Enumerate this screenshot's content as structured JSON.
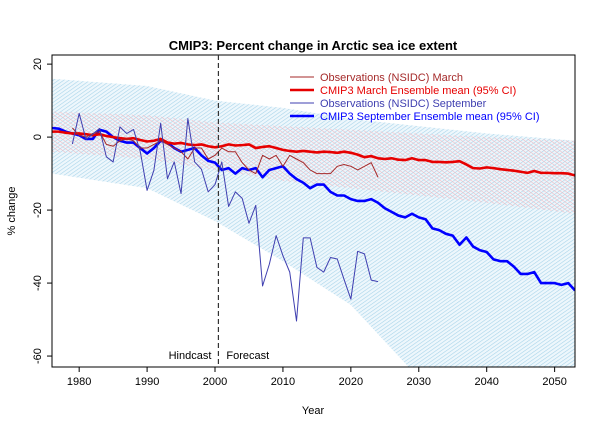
{
  "chart_data": {
    "type": "line",
    "title": "CMIP3: Percent change in Arctic sea ice extent",
    "xlabel": "Year",
    "ylabel": "% change",
    "xlim": [
      1976,
      2053
    ],
    "ylim": [
      -63,
      22.5
    ],
    "grid": false,
    "legend_placement": "top-right",
    "x_ticks": [
      1980,
      1990,
      2000,
      2010,
      2020,
      2030,
      2040,
      2050
    ],
    "y_ticks": [
      20,
      0,
      -20,
      -40,
      -60
    ],
    "annotations": {
      "divider_year": 2000.5,
      "left": "Hindcast",
      "right": "Forecast"
    },
    "colors": {
      "march_obs": "#a52a2a",
      "march_mean": "#e60000",
      "sept_obs": "#3f3fb0",
      "sept_mean": "#0000ff",
      "march_band": "#f3b8c0",
      "sept_band": "#a8d4ea"
    },
    "series": [
      {
        "name": "Observations (NSIDC) March",
        "start_year": 1979,
        "values": [
          2.5,
          0.5,
          0,
          1,
          1.5,
          -2,
          -2.5,
          -1,
          -0.5,
          -1,
          -3,
          -3,
          -2,
          -1,
          -2,
          -3,
          -4,
          -6,
          -3,
          -3,
          -6,
          -5,
          -3,
          -4,
          -4,
          -7,
          -9,
          -10,
          -5,
          -6,
          -5,
          -8,
          -5,
          -6,
          -7,
          -9,
          -10,
          -10,
          -10,
          -8,
          -7.5,
          -8,
          -9,
          -8,
          -7,
          -11
        ]
      },
      {
        "name": "CMIP3 March Ensemble mean (95% CI)",
        "start_year": 1976,
        "values": [
          1.5,
          1.5,
          1.2,
          1.0,
          1.0,
          0.8,
          0.5,
          0.8,
          0.3,
          0.0,
          -0.3,
          -0.5,
          -0.3,
          -0.8,
          -1.2,
          -1.0,
          -0.5,
          -1.5,
          -1.8,
          -1.6,
          -2.0,
          -2.2,
          -2.0,
          -2.5,
          -2.8,
          -2.5,
          -2.0,
          -2.3,
          -2.2,
          -2.0,
          -3.0,
          -2.7,
          -2.5,
          -3.0,
          -3.5,
          -3.8,
          -4.0,
          -3.8,
          -4.0,
          -4.2,
          -4.0,
          -4.1,
          -4.3,
          -4.0,
          -4.3,
          -4.8,
          -5.5,
          -5.2,
          -5.8,
          -6.0,
          -5.8,
          -6.2,
          -6.3,
          -5.8,
          -6.3,
          -6.3,
          -6.8,
          -6.8,
          -6.9,
          -6.8,
          -6.6,
          -7.5,
          -8.5,
          -8.6,
          -8.3,
          -8.5,
          -8.8,
          -9.0,
          -9.2,
          -9.5,
          -9.8,
          -9.3,
          -9.8,
          -9.8,
          -9.9,
          -9.9,
          -10.0,
          -10.5
        ],
        "ci_years": [
          1976,
          1990,
          2000,
          2010,
          2020,
          2030,
          2040,
          2053
        ],
        "ci_upper": [
          7,
          6,
          4,
          3,
          2,
          1,
          0,
          -1
        ],
        "ci_lower": [
          -4,
          -6,
          -9,
          -12,
          -14,
          -16,
          -18,
          -21
        ]
      },
      {
        "name": "Observations (NSIDC) September",
        "start_year": 1979,
        "values": [
          -1.9,
          6.5,
          -0.6,
          0.8,
          2.4,
          -5.4,
          -6.8,
          2.8,
          1,
          2.1,
          -4,
          -14.6,
          -9.1,
          3.8,
          -11.4,
          -6.8,
          -15.5,
          5.1,
          -6.8,
          -8.8,
          -15,
          -13,
          -6.8,
          -19,
          -15,
          -16.8,
          -23.6,
          -18.7,
          -40.8,
          -34.8,
          -27,
          -32.5,
          -37,
          -50.4,
          -27.6,
          -27.6,
          -35.7,
          -37,
          -33,
          -33.4,
          -39,
          -44.4,
          -31.3,
          -32,
          -39.2,
          -39.6
        ]
      },
      {
        "name": "CMIP3 September Ensemble mean (95% CI)",
        "start_year": 1976,
        "values": [
          2.5,
          2.3,
          1.5,
          1.0,
          0.5,
          -0.5,
          -0.5,
          2.0,
          1.5,
          0.0,
          -1.0,
          -1.5,
          -1.5,
          -3.0,
          -4.5,
          -3.0,
          -1.0,
          -1.5,
          -3.0,
          -4.0,
          -3.5,
          -3.0,
          -5.0,
          -6.5,
          -7.0,
          -9.0,
          -8.5,
          -10.0,
          -8.5,
          -9.0,
          -8.5,
          -11.0,
          -9.0,
          -8.5,
          -8.0,
          -10.0,
          -11.5,
          -12.5,
          -14.0,
          -13.0,
          -13.0,
          -15.0,
          -16.0,
          -16.0,
          -17.0,
          -17.5,
          -17.5,
          -17.0,
          -18.0,
          -19.5,
          -20.5,
          -21.5,
          -22.0,
          -21.0,
          -22.0,
          -22.5,
          -25.0,
          -25.5,
          -26.5,
          -27.0,
          -29.5,
          -27.5,
          -30.0,
          -31.0,
          -31.5,
          -33.5,
          -34.0,
          -34.0,
          -35.5,
          -37.5,
          -37.5,
          -37.0,
          -40.0,
          -40.0,
          -40.0,
          -40.5,
          -40.0,
          -42.0
        ],
        "ci_years": [
          1976,
          1990,
          2000,
          2010,
          2020,
          2030,
          2040,
          2053
        ],
        "ci_upper": [
          16,
          14,
          10,
          8,
          5,
          3,
          1,
          -1
        ],
        "ci_lower": [
          -10,
          -14,
          -23,
          -34,
          -46,
          -66,
          -78,
          -90
        ]
      }
    ]
  }
}
